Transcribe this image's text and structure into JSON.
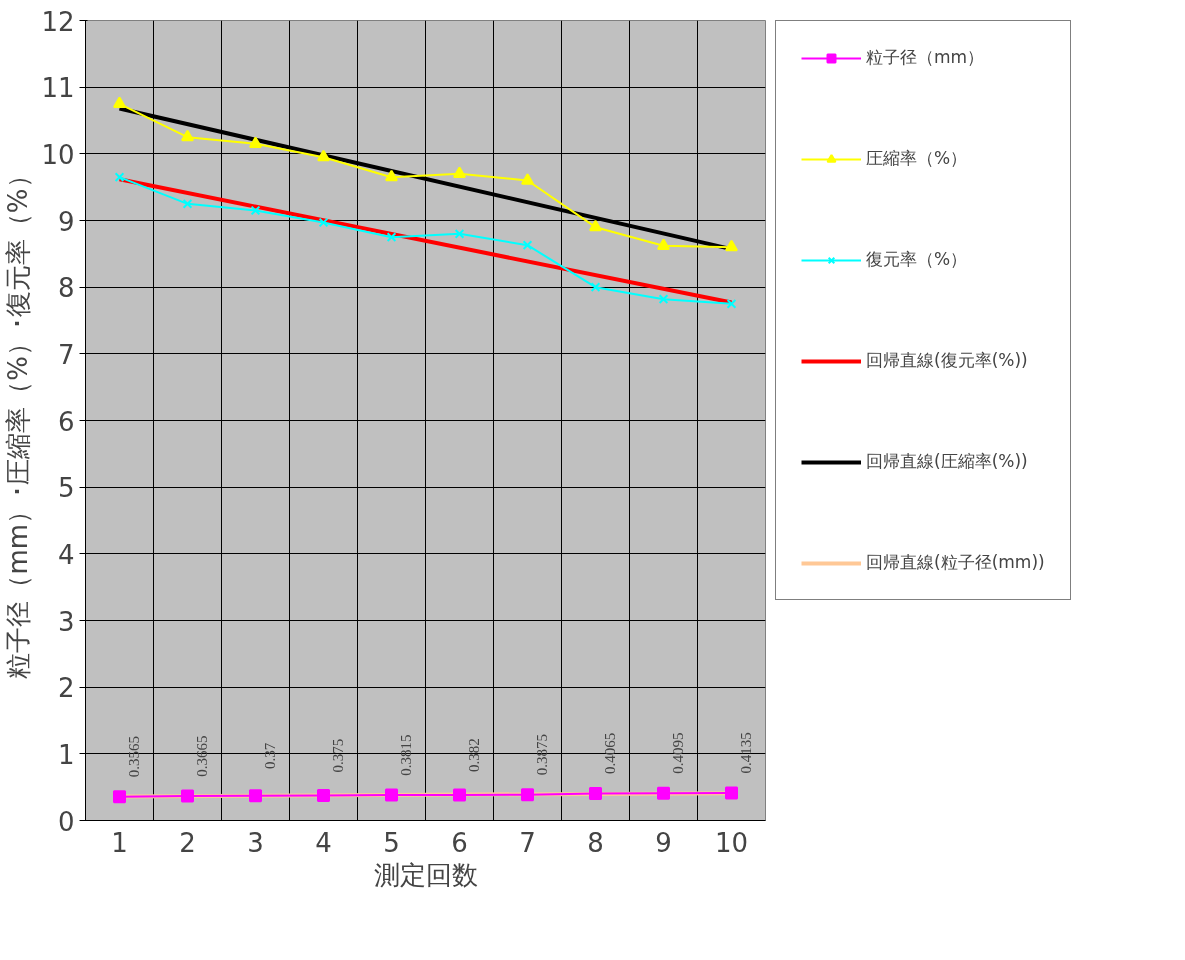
{
  "chart_data": {
    "type": "line",
    "xlabel": "測定回数",
    "ylabel": "粒子径（mm）･圧縮率（%）･復元率（%）",
    "categories": [
      "1",
      "2",
      "3",
      "4",
      "5",
      "6",
      "7",
      "8",
      "9",
      "10"
    ],
    "ylim": [
      0,
      12
    ],
    "yticks": [
      0,
      1,
      2,
      3,
      4,
      5,
      6,
      7,
      8,
      9,
      10,
      11,
      12
    ],
    "grid": true,
    "legend": "right",
    "series": [
      {
        "name": "粒子径（mm）",
        "color": "#ff00ff",
        "marker": "square",
        "values": [
          0.3565,
          0.3665,
          0.37,
          0.375,
          0.3815,
          0.382,
          0.3875,
          0.4065,
          0.4095,
          0.4135
        ],
        "value_labels": [
          "0.3565",
          "0.3665",
          "0.37",
          "0.375",
          "0.3815",
          "0.382",
          "0.3875",
          "0.4065",
          "0.4095",
          "0.4135"
        ]
      },
      {
        "name": "圧縮率（%）",
        "color": "#ffff00",
        "marker": "triangle",
        "values": [
          10.75,
          10.25,
          10.15,
          9.95,
          9.65,
          9.7,
          9.6,
          8.9,
          8.62,
          8.6
        ]
      },
      {
        "name": "復元率（%）",
        "color": "#00ffff",
        "marker": "cross",
        "values": [
          9.65,
          9.25,
          9.15,
          8.97,
          8.75,
          8.8,
          8.63,
          8.0,
          7.82,
          7.75
        ]
      },
      {
        "name": "回帰直線(復元率(%))",
        "color": "#ff0000",
        "marker": "none",
        "x": [
          "1",
          "10"
        ],
        "values": [
          9.62,
          7.77
        ]
      },
      {
        "name": "回帰直線(圧縮率(%))",
        "color": "#000000",
        "marker": "none",
        "x": [
          "1",
          "10"
        ],
        "values": [
          10.68,
          8.57
        ]
      },
      {
        "name": "回帰直線(粒子径(mm))",
        "color": "#ffc896",
        "marker": "none",
        "x": [
          "1",
          "10"
        ],
        "values": [
          0.36,
          0.41
        ]
      }
    ]
  }
}
